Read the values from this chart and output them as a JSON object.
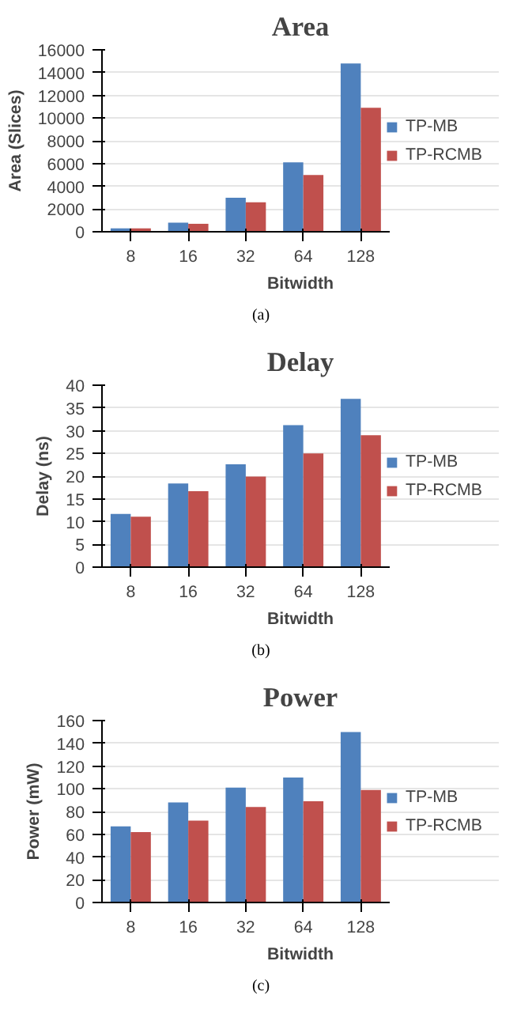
{
  "chart_data": [
    {
      "type": "bar",
      "title": "Area",
      "xlabel": "Bitwidth",
      "ylabel": "Area (Slices)",
      "categories": [
        "8",
        "16",
        "32",
        "64",
        "128"
      ],
      "series": [
        {
          "name": "TP-MB",
          "color": "#4f81bd",
          "values": [
            300,
            800,
            3000,
            6100,
            14800
          ]
        },
        {
          "name": "TP-RCMB",
          "color": "#c0504d",
          "values": [
            300,
            700,
            2600,
            5000,
            10900
          ]
        }
      ],
      "ylim": [
        0,
        16000
      ],
      "yticks": [
        0,
        2000,
        4000,
        6000,
        8000,
        10000,
        12000,
        14000,
        16000
      ],
      "grid": "y",
      "legend": "right",
      "annotations": [
        "(a)"
      ]
    },
    {
      "type": "bar",
      "title": "Delay",
      "xlabel": "Bitwidth",
      "ylabel": "Delay (ns)",
      "categories": [
        "8",
        "16",
        "32",
        "64",
        "128"
      ],
      "series": [
        {
          "name": "TP-MB",
          "color": "#4f81bd",
          "values": [
            11.7,
            18.4,
            22.6,
            31.2,
            37
          ]
        },
        {
          "name": "TP-RCMB",
          "color": "#c0504d",
          "values": [
            11.1,
            16.7,
            19.9,
            25,
            29
          ]
        }
      ],
      "ylim": [
        0,
        40
      ],
      "yticks": [
        0,
        5,
        10,
        15,
        20,
        25,
        30,
        35,
        40
      ],
      "grid": "y",
      "legend": "right",
      "annotations": [
        "(b)"
      ]
    },
    {
      "type": "bar",
      "title": "Power",
      "xlabel": "Bitwidth",
      "ylabel": "Power (mW)",
      "categories": [
        "8",
        "16",
        "32",
        "64",
        "128"
      ],
      "series": [
        {
          "name": "TP-MB",
          "color": "#4f81bd",
          "values": [
            67,
            88,
            101,
            110,
            150
          ]
        },
        {
          "name": "TP-RCMB",
          "color": "#c0504d",
          "values": [
            62,
            72,
            84,
            89,
            99
          ]
        }
      ],
      "ylim": [
        0,
        160
      ],
      "yticks": [
        0,
        20,
        40,
        60,
        80,
        100,
        120,
        140,
        160
      ],
      "grid": "y",
      "legend": "right",
      "annotations": [
        "(c)"
      ]
    }
  ]
}
